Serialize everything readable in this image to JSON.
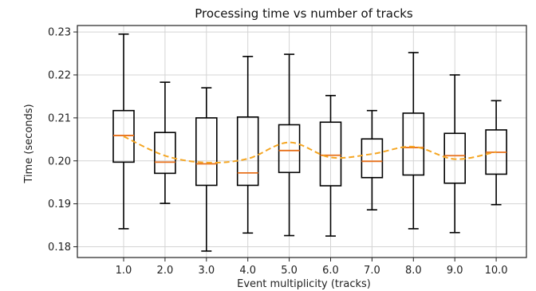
{
  "chart_data": {
    "type": "boxplot",
    "title": "Processing time vs number of tracks",
    "xlabel": "Event multiplicity (tracks)",
    "ylabel": "Time (seconds)",
    "ylim": [
      0.1775,
      0.2315
    ],
    "yticks": [
      "0.18",
      "0.19",
      "0.20",
      "0.21",
      "0.22",
      "0.23"
    ],
    "grid": true,
    "categories": [
      "1.0",
      "2.0",
      "3.0",
      "4.0",
      "5.0",
      "6.0",
      "7.0",
      "8.0",
      "9.0",
      "10.0"
    ],
    "boxes": [
      {
        "whisker_low": 0.1842,
        "q1": 0.1997,
        "median": 0.2059,
        "q3": 0.2117,
        "whisker_high": 0.2295
      },
      {
        "whisker_low": 0.1901,
        "q1": 0.1971,
        "median": 0.1997,
        "q3": 0.2066,
        "whisker_high": 0.2183
      },
      {
        "whisker_low": 0.179,
        "q1": 0.1943,
        "median": 0.1993,
        "q3": 0.21,
        "whisker_high": 0.217
      },
      {
        "whisker_low": 0.1832,
        "q1": 0.1943,
        "median": 0.1972,
        "q3": 0.2102,
        "whisker_high": 0.2243
      },
      {
        "whisker_low": 0.1826,
        "q1": 0.1973,
        "median": 0.2024,
        "q3": 0.2084,
        "whisker_high": 0.2248
      },
      {
        "whisker_low": 0.1825,
        "q1": 0.1942,
        "median": 0.2013,
        "q3": 0.209,
        "whisker_high": 0.2152
      },
      {
        "whisker_low": 0.1886,
        "q1": 0.1961,
        "median": 0.1999,
        "q3": 0.2051,
        "whisker_high": 0.2117
      },
      {
        "whisker_low": 0.1842,
        "q1": 0.1967,
        "median": 0.2031,
        "q3": 0.2111,
        "whisker_high": 0.2252
      },
      {
        "whisker_low": 0.1833,
        "q1": 0.1948,
        "median": 0.2012,
        "q3": 0.2064,
        "whisker_high": 0.22
      },
      {
        "whisker_low": 0.1898,
        "q1": 0.1969,
        "median": 0.202,
        "q3": 0.2072,
        "whisker_high": 0.214
      }
    ],
    "mean_line": {
      "style": "dashed",
      "color": "#f5a623",
      "values": [
        0.2057,
        0.2012,
        0.1996,
        0.2005,
        0.2043,
        0.2008,
        0.2016,
        0.2033,
        0.2004,
        0.2021
      ]
    },
    "colors": {
      "box": "#000000",
      "median": "#e8701a",
      "grid": "#d4d4d4"
    }
  }
}
